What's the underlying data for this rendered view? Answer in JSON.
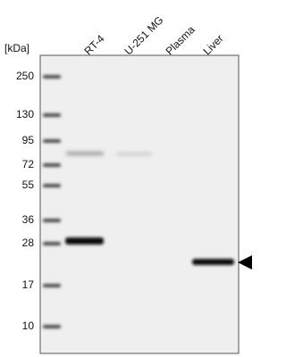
{
  "unit_label": "[kDa]",
  "markers": [
    250,
    130,
    95,
    72,
    55,
    36,
    28,
    17,
    10
  ],
  "lanes": [
    "RT-4",
    "U-251 MG",
    "Plasma",
    "Liver"
  ]
}
